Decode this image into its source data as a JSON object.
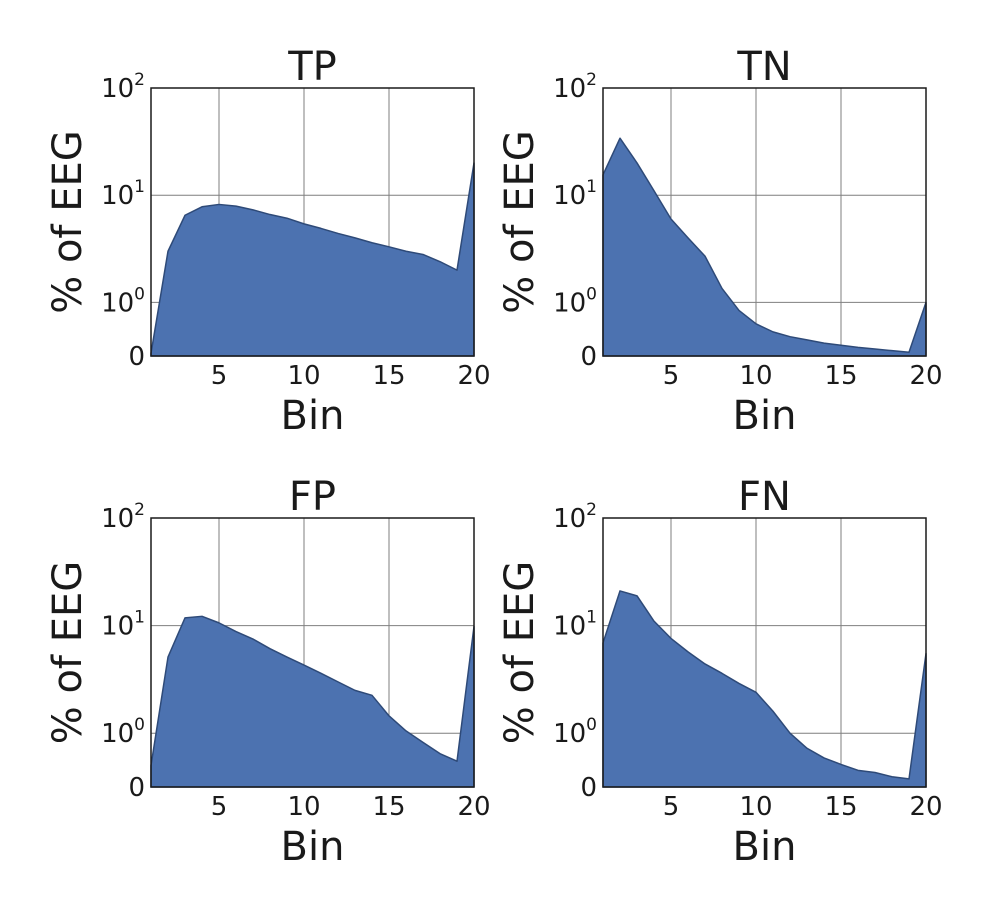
{
  "chart_data": [
    {
      "type": "area",
      "title": "TP",
      "xlabel": "Bin",
      "ylabel": "% of EEG",
      "xlim": [
        1,
        20
      ],
      "xticks": [
        5,
        10,
        15,
        20
      ],
      "yscale": "symlog",
      "yticks": [
        "0",
        "10^0",
        "10^1",
        "10^2"
      ],
      "grid": true,
      "x": [
        1,
        2,
        3,
        4,
        5,
        6,
        7,
        8,
        9,
        10,
        11,
        12,
        13,
        14,
        15,
        16,
        17,
        18,
        19,
        20
      ],
      "values": [
        0.05,
        3.0,
        6.5,
        7.8,
        8.2,
        7.9,
        7.3,
        6.6,
        6.1,
        5.4,
        4.9,
        4.4,
        4.0,
        3.6,
        3.3,
        3.0,
        2.8,
        2.4,
        2.0,
        20
      ]
    },
    {
      "type": "area",
      "title": "TN",
      "xlabel": "Bin",
      "ylabel": "% of EEG",
      "xlim": [
        1,
        20
      ],
      "xticks": [
        5,
        10,
        15,
        20
      ],
      "yscale": "symlog",
      "yticks": [
        "0",
        "10^0",
        "10^1",
        "10^2"
      ],
      "grid": true,
      "x": [
        1,
        2,
        3,
        4,
        5,
        6,
        7,
        8,
        9,
        10,
        11,
        12,
        13,
        14,
        15,
        16,
        17,
        18,
        19,
        20
      ],
      "values": [
        15.5,
        34,
        20,
        11,
        6.0,
        4.0,
        2.7,
        1.35,
        0.85,
        0.6,
        0.45,
        0.36,
        0.3,
        0.24,
        0.2,
        0.16,
        0.13,
        0.1,
        0.07,
        1.0
      ]
    },
    {
      "type": "area",
      "title": "FP",
      "xlabel": "Bin",
      "ylabel": "% of EEG",
      "xlim": [
        1,
        20
      ],
      "xticks": [
        5,
        10,
        15,
        20
      ],
      "yscale": "symlog",
      "yticks": [
        "0",
        "10^0",
        "10^1",
        "10^2"
      ],
      "grid": true,
      "x": [
        1,
        2,
        3,
        4,
        5,
        6,
        7,
        8,
        9,
        10,
        11,
        12,
        13,
        14,
        15,
        16,
        17,
        18,
        19,
        20
      ],
      "values": [
        0.4,
        5.1,
        11.8,
        12.2,
        10.6,
        8.8,
        7.5,
        6.1,
        5.1,
        4.3,
        3.6,
        3.0,
        2.5,
        2.25,
        1.45,
        1.05,
        0.83,
        0.62,
        0.48,
        9.8
      ]
    },
    {
      "type": "area",
      "title": "FN",
      "xlabel": "Bin",
      "ylabel": "% of EEG",
      "xlim": [
        1,
        20
      ],
      "xticks": [
        5,
        10,
        15,
        20
      ],
      "yscale": "symlog",
      "yticks": [
        "0",
        "10^0",
        "10^1",
        "10^2"
      ],
      "grid": true,
      "x": [
        1,
        2,
        3,
        4,
        5,
        6,
        7,
        8,
        9,
        10,
        11,
        12,
        13,
        14,
        15,
        16,
        17,
        18,
        19,
        20
      ],
      "values": [
        6.9,
        21.0,
        18.9,
        11.0,
        7.6,
        5.7,
        4.4,
        3.6,
        2.9,
        2.4,
        1.6,
        1.0,
        0.72,
        0.54,
        0.42,
        0.31,
        0.27,
        0.19,
        0.15,
        5.5
      ]
    }
  ]
}
